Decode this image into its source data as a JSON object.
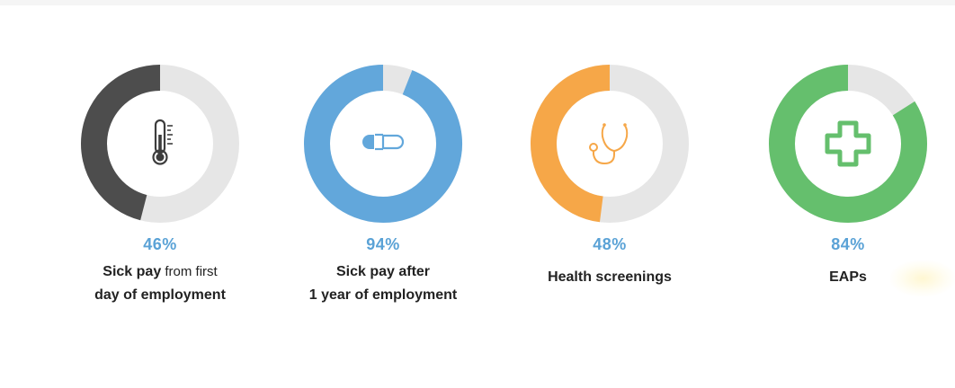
{
  "chart_data": [
    {
      "type": "pie",
      "value": 46,
      "value_label": "46%",
      "label_lines": [
        [
          "Sick pay",
          " from first"
        ],
        [
          "day of employment",
          ""
        ]
      ],
      "color": "#4d4d4d",
      "track_color": "#e6e6e6",
      "icon": "thermometer-icon"
    },
    {
      "type": "pie",
      "value": 94,
      "value_label": "94%",
      "label_lines": [
        [
          "Sick pay after",
          ""
        ],
        [
          "1 year of employment",
          ""
        ]
      ],
      "color": "#62a7db",
      "track_color": "#e6e6e6",
      "icon": "pill-icon"
    },
    {
      "type": "pie",
      "value": 48,
      "value_label": "48%",
      "label_lines": [
        [
          "Health screenings",
          ""
        ]
      ],
      "color": "#f6a748",
      "track_color": "#e6e6e6",
      "icon": "stethoscope-icon"
    },
    {
      "type": "pie",
      "value": 84,
      "value_label": "84%",
      "label_lines": [
        [
          "EAPs",
          ""
        ]
      ],
      "color": "#65bf6d",
      "track_color": "#e6e6e6",
      "icon": "plus-cross-icon"
    }
  ]
}
